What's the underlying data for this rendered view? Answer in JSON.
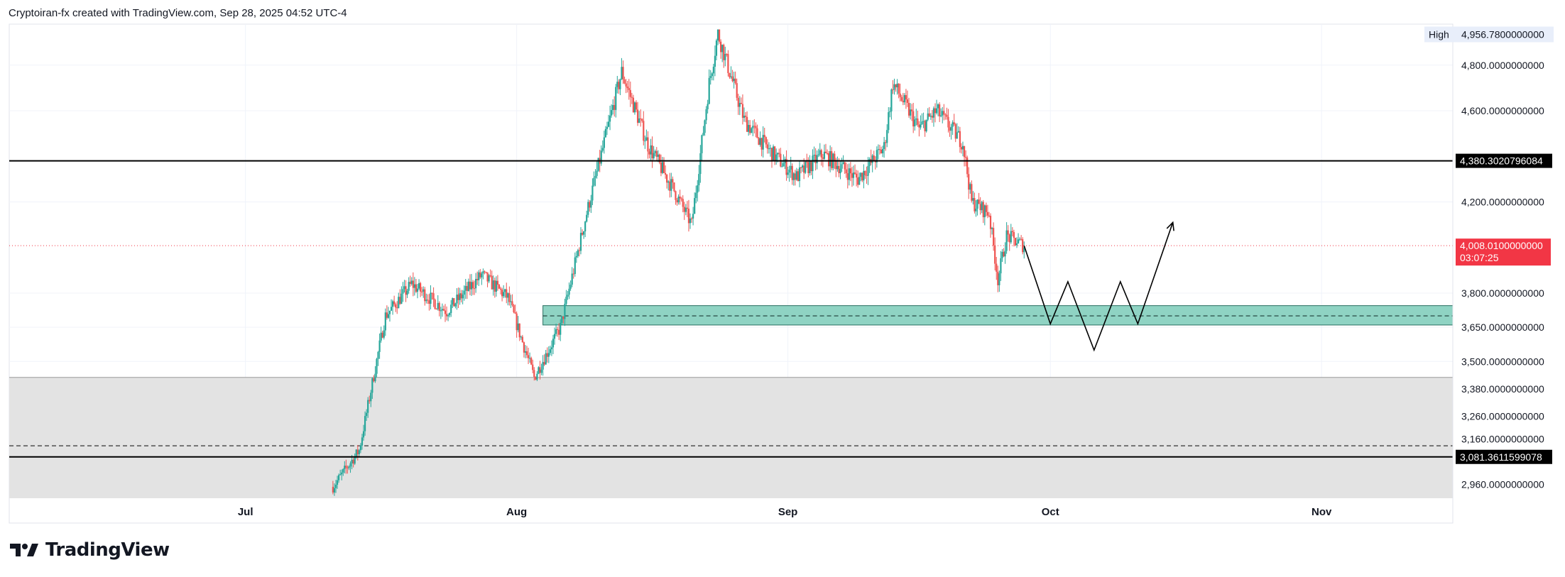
{
  "header": {
    "text": "Cryptoiran-fx created with TradingView.com, Sep 28, 2025 04:52 UTC-4"
  },
  "brand": {
    "name": "TradingView"
  },
  "colors": {
    "up": "#26a69a",
    "down": "#ef5350",
    "zone": "#8fd3c3",
    "zone_border": "#2a6f60",
    "lower_zone": "#e3e3e3",
    "last_price": "#f23645",
    "line": "#000000",
    "grid": "#f0f3fa"
  },
  "chart_data": {
    "type": "candlestick",
    "symbol_price_axis": "right",
    "ylim": [
      2900,
      4980
    ],
    "x_range": [
      "2025-06-04",
      "2025-11-16"
    ],
    "xticks": [
      {
        "label": "Jul",
        "date": "2025-07-01"
      },
      {
        "label": "Aug",
        "date": "2025-08-01"
      },
      {
        "label": "Sep",
        "date": "2025-09-01"
      },
      {
        "label": "Oct",
        "date": "2025-10-01"
      },
      {
        "label": "Nov",
        "date": "2025-11-01"
      }
    ],
    "yticks": [
      {
        "value": 4800,
        "label": "4,800.0000000000"
      },
      {
        "value": 4600,
        "label": "4,600.0000000000"
      },
      {
        "value": 4200,
        "label": "4,200.0000000000"
      },
      {
        "value": 3800,
        "label": "3,800.0000000000"
      },
      {
        "value": 3650,
        "label": "3,650.0000000000"
      },
      {
        "value": 3500,
        "label": "3,500.0000000000"
      },
      {
        "value": 3380,
        "label": "3,380.0000000000"
      },
      {
        "value": 3260,
        "label": "3,260.0000000000"
      },
      {
        "value": 3160,
        "label": "3,160.0000000000"
      },
      {
        "value": 2960,
        "label": "2,960.0000000000"
      }
    ],
    "high": {
      "label": "High",
      "value": 4956.78,
      "value_text": "4,956.7800000000"
    },
    "horizontal_lines": [
      {
        "value": 4380.3020796084,
        "label": "4,380.3020796084"
      },
      {
        "value": 3081.3611599078,
        "label": "3,081.3611599078"
      }
    ],
    "last_price": {
      "value": 4008.01,
      "label": "4,008.0100000000",
      "countdown": "03:07:25"
    },
    "support_zone": {
      "top": 3745,
      "bottom": 3660,
      "mid": 3700,
      "from": "2025-08-04",
      "to": "2025-11-16"
    },
    "lower_zone": {
      "top": 3430,
      "bottom": 2900,
      "dashed": 3130
    },
    "price_path": [
      [
        "2025-07-11",
        2950
      ],
      [
        "2025-07-14",
        3110
      ],
      [
        "2025-07-17",
        3700
      ],
      [
        "2025-07-20",
        3840
      ],
      [
        "2025-07-24",
        3720
      ],
      [
        "2025-07-28",
        3880
      ],
      [
        "2025-07-31",
        3780
      ],
      [
        "2025-08-03",
        3430
      ],
      [
        "2025-08-06",
        3650
      ],
      [
        "2025-08-09",
        4150
      ],
      [
        "2025-08-13",
        4770
      ],
      [
        "2025-08-16",
        4450
      ],
      [
        "2025-08-19",
        4250
      ],
      [
        "2025-08-21",
        4100
      ],
      [
        "2025-08-23",
        4720
      ],
      [
        "2025-08-24",
        4940
      ],
      [
        "2025-08-27",
        4560
      ],
      [
        "2025-08-30",
        4420
      ],
      [
        "2025-09-02",
        4310
      ],
      [
        "2025-09-05",
        4410
      ],
      [
        "2025-09-09",
        4300
      ],
      [
        "2025-09-12",
        4440
      ],
      [
        "2025-09-13",
        4720
      ],
      [
        "2025-09-16",
        4520
      ],
      [
        "2025-09-18",
        4600
      ],
      [
        "2025-09-21",
        4460
      ],
      [
        "2025-09-22",
        4200
      ],
      [
        "2025-09-24",
        4150
      ],
      [
        "2025-09-25",
        3860
      ],
      [
        "2025-09-26",
        4050
      ],
      [
        "2025-09-28",
        4008
      ]
    ],
    "projection": [
      [
        "2025-09-28",
        4008
      ],
      [
        "2025-10-01",
        3665
      ],
      [
        "2025-10-03",
        3850
      ],
      [
        "2025-10-06",
        3550
      ],
      [
        "2025-10-09",
        3850
      ],
      [
        "2025-10-11",
        3665
      ],
      [
        "2025-10-15",
        4110
      ]
    ]
  }
}
